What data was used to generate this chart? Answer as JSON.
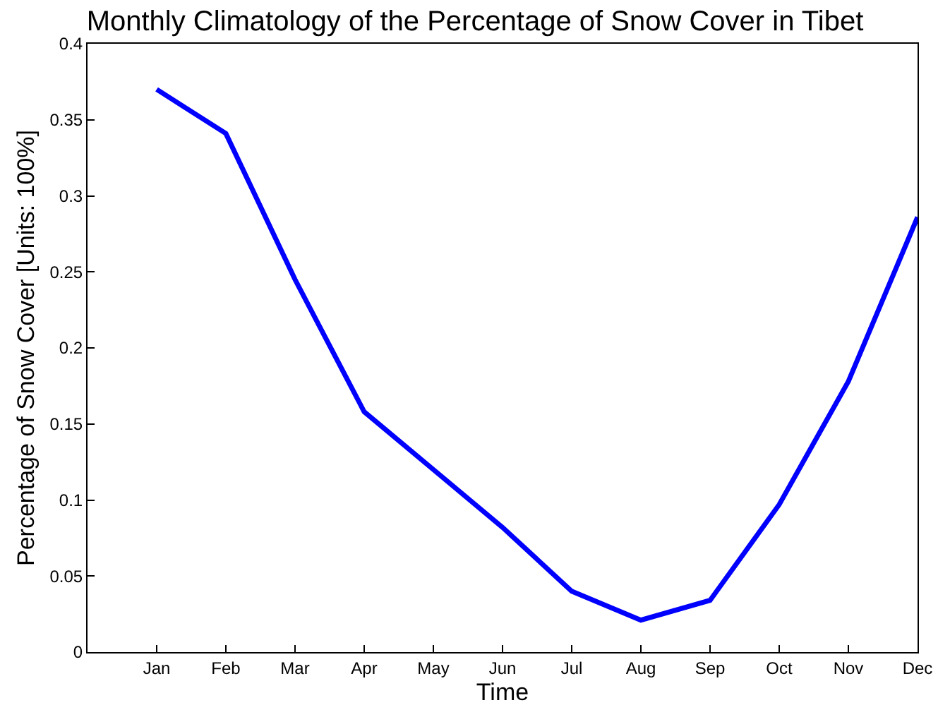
{
  "chart_data": {
    "type": "line",
    "title": "Monthly Climatology of the Percentage of Snow Cover in Tibet",
    "xlabel": "Time",
    "ylabel": "Percentage of Snow Cover [Units: 100%]",
    "categories": [
      null,
      "Jan",
      "Feb",
      "Mar",
      "Apr",
      "May",
      "Jun",
      "Jul",
      "Aug",
      "Sep",
      "Oct",
      "Nov",
      "Dec"
    ],
    "series": [
      {
        "color": "#0000ff",
        "values": [
          null,
          0.37,
          0.341,
          0.245,
          0.158,
          0.12,
          0.082,
          0.04,
          0.021,
          0.034,
          0.097,
          0.178,
          0.286
        ]
      }
    ],
    "ylim": [
      0,
      0.4
    ],
    "yticks": [
      0,
      0.05,
      0.1,
      0.15,
      0.2,
      0.25,
      0.3,
      0.35,
      0.4
    ],
    "line_style": "solid"
  }
}
